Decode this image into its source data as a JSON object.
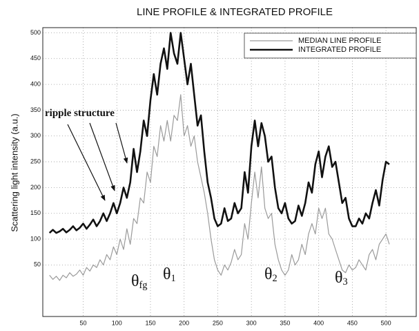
{
  "chart_data": {
    "type": "line",
    "title": "LINE PROFILE & INTEGRATED PROFILE",
    "y_label": "Scattering light intensity (a.u.)",
    "x": [
      0,
      5,
      10,
      15,
      20,
      25,
      30,
      35,
      40,
      45,
      50,
      55,
      60,
      65,
      70,
      75,
      80,
      85,
      90,
      95,
      100,
      105,
      110,
      115,
      120,
      125,
      130,
      135,
      140,
      145,
      150,
      155,
      160,
      165,
      170,
      175,
      180,
      185,
      190,
      195,
      200,
      205,
      210,
      215,
      220,
      225,
      230,
      235,
      240,
      245,
      250,
      255,
      260,
      265,
      270,
      275,
      280,
      285,
      290,
      295,
      300,
      305,
      310,
      315,
      320,
      325,
      330,
      335,
      340,
      345,
      350,
      355,
      360,
      365,
      370,
      375,
      380,
      385,
      390,
      395,
      400,
      405,
      410,
      415,
      420,
      425,
      430,
      435,
      440,
      445,
      450,
      455,
      460,
      465,
      470,
      475,
      480,
      485,
      490,
      495,
      500,
      505
    ],
    "series": [
      {
        "name": "MEDIAN LINE PROFILE",
        "color": "#9a9a9a",
        "width": 1.2,
        "values": [
          30,
          22,
          28,
          20,
          30,
          25,
          35,
          28,
          32,
          40,
          30,
          45,
          38,
          50,
          45,
          60,
          50,
          70,
          60,
          85,
          70,
          100,
          80,
          120,
          90,
          140,
          130,
          180,
          170,
          230,
          210,
          280,
          260,
          320,
          290,
          330,
          290,
          340,
          330,
          380,
          300,
          320,
          280,
          300,
          250,
          220,
          190,
          150,
          100,
          60,
          40,
          30,
          50,
          40,
          55,
          80,
          60,
          70,
          130,
          100,
          170,
          230,
          180,
          240,
          160,
          140,
          150,
          90,
          60,
          40,
          30,
          40,
          70,
          50,
          60,
          90,
          70,
          110,
          130,
          110,
          160,
          140,
          160,
          110,
          100,
          80,
          60,
          40,
          35,
          50,
          40,
          45,
          60,
          50,
          40,
          70,
          80,
          60,
          90,
          100,
          110,
          90
        ]
      },
      {
        "name": "INTEGRATED PROFILE",
        "color": "#111111",
        "width": 2.6,
        "values": [
          112,
          118,
          112,
          115,
          120,
          113,
          118,
          125,
          117,
          122,
          130,
          120,
          128,
          138,
          125,
          135,
          150,
          135,
          150,
          170,
          150,
          170,
          200,
          180,
          210,
          275,
          230,
          270,
          330,
          300,
          370,
          420,
          380,
          440,
          470,
          430,
          500,
          460,
          440,
          500,
          450,
          400,
          440,
          380,
          320,
          340,
          270,
          210,
          180,
          140,
          125,
          130,
          160,
          135,
          140,
          170,
          150,
          160,
          230,
          190,
          280,
          330,
          280,
          325,
          300,
          250,
          260,
          200,
          160,
          150,
          170,
          140,
          130,
          135,
          165,
          145,
          170,
          210,
          190,
          245,
          270,
          220,
          260,
          280,
          240,
          250,
          210,
          170,
          180,
          140,
          125,
          125,
          140,
          130,
          150,
          140,
          170,
          195,
          165,
          215,
          250,
          245
        ]
      }
    ],
    "xlim": [
      -10,
      545
    ],
    "ylim": [
      -50,
      510
    ],
    "xticks": [
      50,
      100,
      150,
      200,
      250,
      300,
      350,
      400,
      450,
      500
    ],
    "yticks": [
      50,
      100,
      150,
      200,
      250,
      300,
      350,
      400,
      450,
      500
    ],
    "grid": true,
    "legend": "upper right",
    "annotations": [
      {
        "text": "ripple structure"
      },
      {
        "text": "θ",
        "sub": "fg"
      },
      {
        "text": "θ",
        "sub": "1"
      },
      {
        "text": "θ",
        "sub": "2"
      },
      {
        "text": "θ",
        "sub": "3"
      }
    ]
  }
}
